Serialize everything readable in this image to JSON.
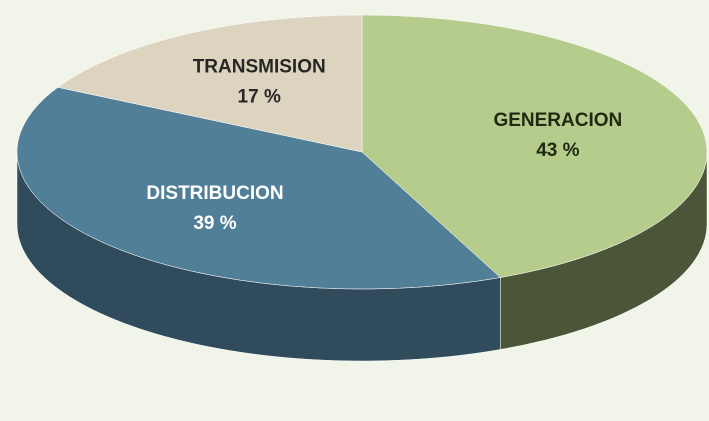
{
  "chart_data": {
    "type": "pie",
    "categories": [
      "GENERACION",
      "DISTRIBUCION",
      "TRANSMISION"
    ],
    "values": [
      43,
      39,
      17
    ],
    "value_labels": [
      "43 %",
      "39 %",
      "17 %"
    ],
    "colors": [
      "#b6cc8d",
      "#527f98",
      "#ddd4bf"
    ],
    "side_colors": [
      "#4b5537",
      "#2f4b5c",
      "#8a8270"
    ]
  }
}
